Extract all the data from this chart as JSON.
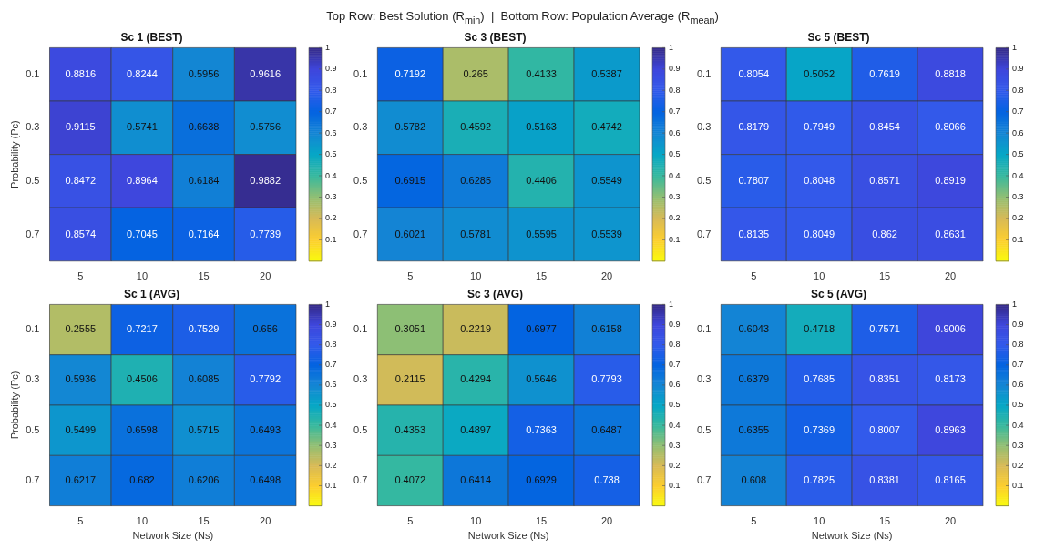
{
  "chart_data": [
    {
      "type": "heatmap",
      "title": "Sc 1 (BEST)",
      "ylabel": "Probability (Pc)",
      "annotations": [
        "Top Row: Best Solution (R$_{min}$)  |  Bottom Row: Population Average (R$_{mean}$)"
      ],
      "categories": [
        "5",
        "10",
        "15",
        "20"
      ],
      "y_categories": [
        "0.1",
        "0.3",
        "0.5",
        "0.7"
      ],
      "cells": [
        [
          0.8816,
          0.8244,
          0.5956,
          0.9616
        ],
        [
          0.9115,
          0.5741,
          0.6638,
          0.5756
        ],
        [
          0.8472,
          0.8964,
          0.6184,
          0.9882
        ],
        [
          0.8574,
          0.7045,
          0.7164,
          0.7739
        ]
      ],
      "clim": [
        0,
        1
      ],
      "cticks": [
        0.1,
        0.2,
        0.3,
        0.4,
        0.5,
        0.6,
        0.7,
        0.8,
        0.9,
        1
      ],
      "data_labels": true
    },
    {
      "type": "heatmap",
      "title": "Sc 3 (BEST)",
      "categories": [
        "5",
        "10",
        "15",
        "20"
      ],
      "y_categories": [
        "0.1",
        "0.3",
        "0.5",
        "0.7"
      ],
      "cells": [
        [
          0.7192,
          0.265,
          0.4133,
          0.5387
        ],
        [
          0.5782,
          0.4592,
          0.5163,
          0.4742
        ],
        [
          0.6915,
          0.6285,
          0.4406,
          0.5549
        ],
        [
          0.6021,
          0.5781,
          0.5595,
          0.5539
        ]
      ],
      "clim": [
        0,
        1
      ],
      "cticks": [
        0.1,
        0.2,
        0.3,
        0.4,
        0.5,
        0.6,
        0.7,
        0.8,
        0.9,
        1
      ],
      "data_labels": true
    },
    {
      "type": "heatmap",
      "title": "Sc 5 (BEST)",
      "categories": [
        "5",
        "10",
        "15",
        "20"
      ],
      "y_categories": [
        "0.1",
        "0.3",
        "0.5",
        "0.7"
      ],
      "cells": [
        [
          0.8054,
          0.5052,
          0.7619,
          0.8818
        ],
        [
          0.8179,
          0.7949,
          0.8454,
          0.8066
        ],
        [
          0.7807,
          0.8048,
          0.8571,
          0.8919
        ],
        [
          0.8135,
          0.8049,
          0.862,
          0.8631
        ]
      ],
      "clim": [
        0,
        1
      ],
      "cticks": [
        0.1,
        0.2,
        0.3,
        0.4,
        0.5,
        0.6,
        0.7,
        0.8,
        0.9,
        1
      ],
      "data_labels": true
    },
    {
      "type": "heatmap",
      "title": "Sc 1 (AVG)",
      "xlabel": "Network Size (Ns)",
      "ylabel": "Probability (Pc)",
      "categories": [
        "5",
        "10",
        "15",
        "20"
      ],
      "y_categories": [
        "0.1",
        "0.3",
        "0.5",
        "0.7"
      ],
      "cells": [
        [
          0.2555,
          0.7217,
          0.7529,
          0.656
        ],
        [
          0.5936,
          0.4506,
          0.6085,
          0.7792
        ],
        [
          0.5499,
          0.6598,
          0.5715,
          0.6493
        ],
        [
          0.6217,
          0.682,
          0.6206,
          0.6498
        ]
      ],
      "clim": [
        0,
        1
      ],
      "cticks": [
        0.1,
        0.2,
        0.3,
        0.4,
        0.5,
        0.6,
        0.7,
        0.8,
        0.9,
        1
      ],
      "data_labels": true
    },
    {
      "type": "heatmap",
      "title": "Sc 3 (AVG)",
      "xlabel": "Network Size (Ns)",
      "categories": [
        "5",
        "10",
        "15",
        "20"
      ],
      "y_categories": [
        "0.1",
        "0.3",
        "0.5",
        "0.7"
      ],
      "cells": [
        [
          0.3051,
          0.2219,
          0.6977,
          0.6158
        ],
        [
          0.2115,
          0.4294,
          0.5646,
          0.7793
        ],
        [
          0.4353,
          0.4897,
          0.7363,
          0.6487
        ],
        [
          0.4072,
          0.6414,
          0.6929,
          0.738
        ]
      ],
      "clim": [
        0,
        1
      ],
      "cticks": [
        0.1,
        0.2,
        0.3,
        0.4,
        0.5,
        0.6,
        0.7,
        0.8,
        0.9,
        1
      ],
      "data_labels": true
    },
    {
      "type": "heatmap",
      "title": "Sc 5 (AVG)",
      "xlabel": "Network Size (Ns)",
      "categories": [
        "5",
        "10",
        "15",
        "20"
      ],
      "y_categories": [
        "0.1",
        "0.3",
        "0.5",
        "0.7"
      ],
      "cells": [
        [
          0.6043,
          0.4718,
          0.7571,
          0.9006
        ],
        [
          0.6379,
          0.7685,
          0.8351,
          0.8173
        ],
        [
          0.6355,
          0.7369,
          0.8007,
          0.8963
        ],
        [
          0.608,
          0.7825,
          0.8381,
          0.8165
        ]
      ],
      "clim": [
        0,
        1
      ],
      "cticks": [
        0.1,
        0.2,
        0.3,
        0.4,
        0.5,
        0.6,
        0.7,
        0.8,
        0.9,
        1
      ],
      "data_labels": true
    }
  ]
}
